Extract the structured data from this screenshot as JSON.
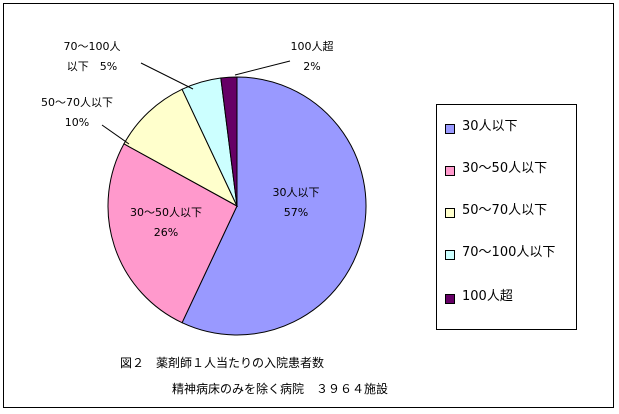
{
  "chart_data": {
    "type": "pie",
    "title": "",
    "slices": [
      {
        "label": "30人以下",
        "label_lines": [
          "30人以下"
        ],
        "value": 57,
        "display": "57%",
        "color": "#9999ff"
      },
      {
        "label": "30～50人以下",
        "label_lines": [
          "30～50人以下"
        ],
        "value": 26,
        "display": "26%",
        "color": "#ff99cc"
      },
      {
        "label": "50～70人以下",
        "label_lines": [
          "50～70人以下"
        ],
        "value": 10,
        "display": "10%",
        "color": "#ffffcc"
      },
      {
        "label": "70～100人以下",
        "label_lines": [
          "70～100人",
          "以下"
        ],
        "value": 5,
        "display": "5%",
        "color": "#ccffff"
      },
      {
        "label": "100人超",
        "label_lines": [
          "100人超"
        ],
        "value": 2,
        "display": "2%",
        "color": "#660066"
      }
    ],
    "legend": {
      "position": "right",
      "entries": [
        "30人以下",
        "30～50人以下",
        "50～70人以下",
        "70～100人以下",
        "100人超"
      ]
    }
  },
  "caption": {
    "line1": "図２　薬剤師１人当たりの入院患者数",
    "line2": "精神病床のみを除く病院　３９６４施設"
  }
}
